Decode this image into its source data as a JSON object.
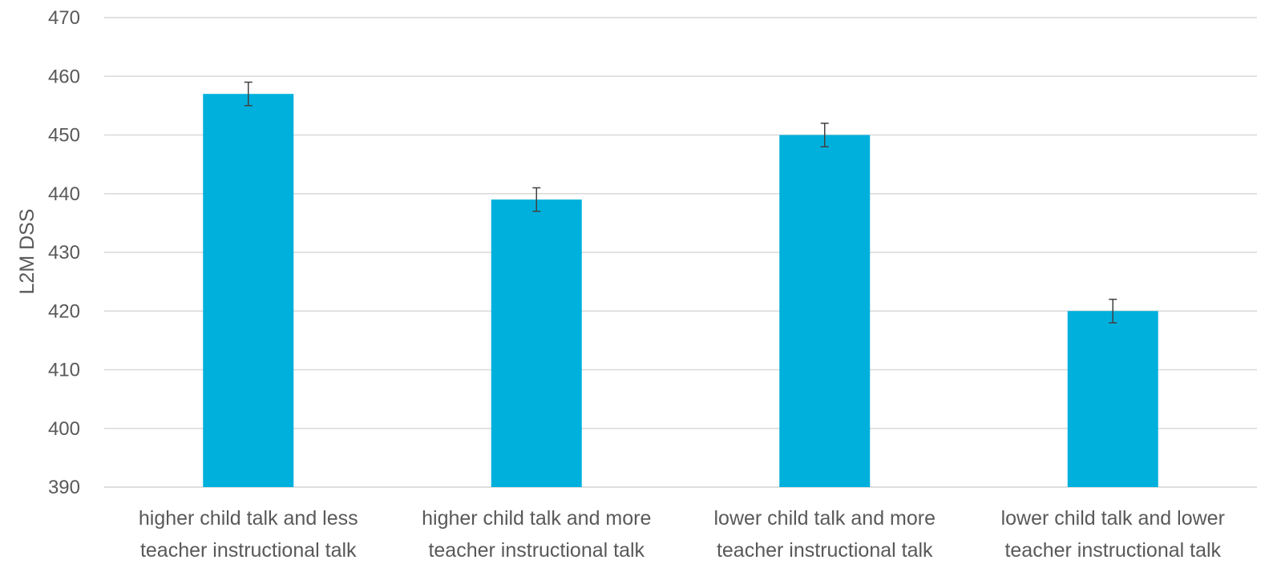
{
  "chart_data": {
    "type": "bar",
    "title": "",
    "xlabel": "",
    "ylabel": "L2M DSS",
    "ylim": [
      390,
      470
    ],
    "yticks": [
      390,
      400,
      410,
      420,
      430,
      440,
      450,
      460,
      470
    ],
    "grid": true,
    "legend": "none",
    "categories": [
      [
        "higher child talk and less",
        "teacher instructional talk"
      ],
      [
        "higher child talk and more",
        "teacher instructional talk"
      ],
      [
        "lower child talk and more",
        "teacher instructional talk"
      ],
      [
        "lower child talk and lower",
        "teacher instructional talk"
      ]
    ],
    "series": [
      {
        "values": [
          457,
          439,
          450,
          420
        ],
        "error": [
          2,
          2,
          2,
          2
        ],
        "color": "#00b0dc"
      }
    ],
    "colors": {
      "grid": "#d9d9d9",
      "axis": "#d9d9d9",
      "text": "#595959",
      "errorbar": "#404040"
    }
  }
}
